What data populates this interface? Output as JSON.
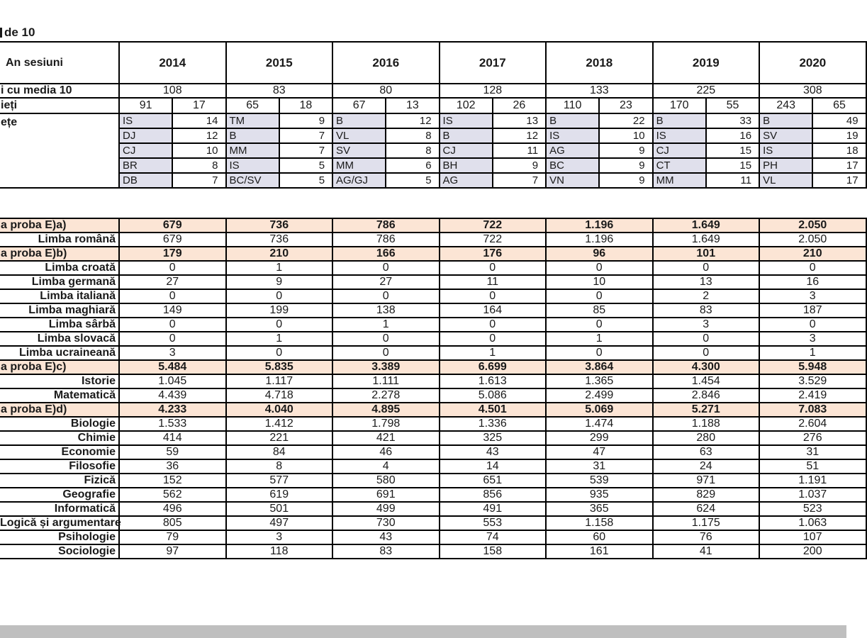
{
  "title_fragment": "de 10",
  "colors": {
    "code_cell_bg": "#e0e0ec",
    "section_row_bg": "#fce5d5",
    "border": "#000000",
    "bottom_bar": "#bfbfbf"
  },
  "years_table": {
    "row_labels": {
      "years": "An sesiuni",
      "media10": "i cu media 10",
      "split": "ieți",
      "counties": "ețe"
    },
    "years": [
      "2014",
      "2015",
      "2016",
      "2017",
      "2018",
      "2019",
      "2020"
    ],
    "media10_totals": [
      "108",
      "83",
      "80",
      "128",
      "133",
      "225",
      "308"
    ],
    "split_counts": [
      [
        "91",
        "17"
      ],
      [
        "65",
        "18"
      ],
      [
        "67",
        "13"
      ],
      [
        "102",
        "26"
      ],
      [
        "110",
        "23"
      ],
      [
        "170",
        "55"
      ],
      [
        "243",
        "65"
      ]
    ],
    "top_counties": [
      [
        [
          "IS",
          "14"
        ],
        [
          "DJ",
          "12"
        ],
        [
          "CJ",
          "10"
        ],
        [
          "BR",
          "8"
        ],
        [
          "DB",
          "7"
        ]
      ],
      [
        [
          "TM",
          "9"
        ],
        [
          "B",
          "7"
        ],
        [
          "MM",
          "7"
        ],
        [
          "IS",
          "5"
        ],
        [
          "BC/SV",
          "5"
        ]
      ],
      [
        [
          "B",
          "12"
        ],
        [
          "VL",
          "8"
        ],
        [
          "SV",
          "8"
        ],
        [
          "MM",
          "6"
        ],
        [
          "AG/GJ",
          "5"
        ]
      ],
      [
        [
          "IS",
          "13"
        ],
        [
          "B",
          "12"
        ],
        [
          "CJ",
          "11"
        ],
        [
          "BH",
          "9"
        ],
        [
          "AG",
          "7"
        ]
      ],
      [
        [
          "B",
          "22"
        ],
        [
          "IS",
          "10"
        ],
        [
          "AG",
          "9"
        ],
        [
          "BC",
          "9"
        ],
        [
          "VN",
          "9"
        ]
      ],
      [
        [
          "B",
          "33"
        ],
        [
          "IS",
          "16"
        ],
        [
          "CJ",
          "15"
        ],
        [
          "CT",
          "15"
        ],
        [
          "MM",
          "11"
        ]
      ],
      [
        [
          "B",
          "49"
        ],
        [
          "SV",
          "19"
        ],
        [
          "IS",
          "18"
        ],
        [
          "PH",
          "17"
        ],
        [
          "VL",
          "17"
        ]
      ]
    ]
  },
  "subjects_table": {
    "rows": [
      {
        "label": "a proba E)a)",
        "type": "section",
        "values": [
          "679",
          "736",
          "786",
          "722",
          "1.196",
          "1.649",
          "2.050"
        ]
      },
      {
        "label": "Limba română",
        "type": "subject",
        "values": [
          "679",
          "736",
          "786",
          "722",
          "1.196",
          "1.649",
          "2.050"
        ]
      },
      {
        "label": "a proba E)b)",
        "type": "section",
        "values": [
          "179",
          "210",
          "166",
          "176",
          "96",
          "101",
          "210"
        ]
      },
      {
        "label": "Limba croată",
        "type": "subject",
        "values": [
          "0",
          "1",
          "0",
          "0",
          "0",
          "0",
          "0"
        ]
      },
      {
        "label": "Limba germană",
        "type": "subject",
        "values": [
          "27",
          "9",
          "27",
          "11",
          "10",
          "13",
          "16"
        ]
      },
      {
        "label": "Limba italiană",
        "type": "subject",
        "values": [
          "0",
          "0",
          "0",
          "0",
          "0",
          "2",
          "3"
        ]
      },
      {
        "label": "Limba maghiară",
        "type": "subject",
        "values": [
          "149",
          "199",
          "138",
          "164",
          "85",
          "83",
          "187"
        ]
      },
      {
        "label": "Limba sârbă",
        "type": "subject",
        "values": [
          "0",
          "0",
          "1",
          "0",
          "0",
          "3",
          "0"
        ]
      },
      {
        "label": "Limba slovacă",
        "type": "subject",
        "values": [
          "0",
          "1",
          "0",
          "0",
          "1",
          "0",
          "3"
        ]
      },
      {
        "label": "Limba ucraineană",
        "type": "subject",
        "values": [
          "3",
          "0",
          "0",
          "1",
          "0",
          "0",
          "1"
        ]
      },
      {
        "label": "a proba E)c)",
        "type": "section",
        "values": [
          "5.484",
          "5.835",
          "3.389",
          "6.699",
          "3.864",
          "4.300",
          "5.948"
        ]
      },
      {
        "label": "Istorie",
        "type": "subject",
        "values": [
          "1.045",
          "1.117",
          "1.111",
          "1.613",
          "1.365",
          "1.454",
          "3.529"
        ]
      },
      {
        "label": "Matematică",
        "type": "subject",
        "values": [
          "4.439",
          "4.718",
          "2.278",
          "5.086",
          "2.499",
          "2.846",
          "2.419"
        ]
      },
      {
        "label": "a proba E)d)",
        "type": "section",
        "values": [
          "4.233",
          "4.040",
          "4.895",
          "4.501",
          "5.069",
          "5.271",
          "7.083"
        ]
      },
      {
        "label": "Biologie",
        "type": "subject",
        "values": [
          "1.533",
          "1.412",
          "1.798",
          "1.336",
          "1.474",
          "1.188",
          "2.604"
        ]
      },
      {
        "label": "Chimie",
        "type": "subject",
        "values": [
          "414",
          "221",
          "421",
          "325",
          "299",
          "280",
          "276"
        ]
      },
      {
        "label": "Economie",
        "type": "subject",
        "values": [
          "59",
          "84",
          "46",
          "43",
          "47",
          "63",
          "31"
        ]
      },
      {
        "label": "Filosofie",
        "type": "subject",
        "values": [
          "36",
          "8",
          "4",
          "14",
          "31",
          "24",
          "51"
        ]
      },
      {
        "label": "Fizică",
        "type": "subject",
        "values": [
          "152",
          "577",
          "580",
          "651",
          "539",
          "971",
          "1.191"
        ]
      },
      {
        "label": "Geografie",
        "type": "subject",
        "values": [
          "562",
          "619",
          "691",
          "856",
          "935",
          "829",
          "1.037"
        ]
      },
      {
        "label": "Informatică",
        "type": "subject",
        "values": [
          "496",
          "501",
          "499",
          "491",
          "365",
          "624",
          "523"
        ]
      },
      {
        "label": "Logică și argumentare",
        "type": "subject",
        "values": [
          "805",
          "497",
          "730",
          "553",
          "1.158",
          "1.175",
          "1.063"
        ]
      },
      {
        "label": "Psihologie",
        "type": "subject",
        "values": [
          "79",
          "3",
          "43",
          "74",
          "60",
          "76",
          "107"
        ]
      },
      {
        "label": "Sociologie",
        "type": "subject",
        "values": [
          "97",
          "118",
          "83",
          "158",
          "161",
          "41",
          "200"
        ]
      }
    ]
  }
}
